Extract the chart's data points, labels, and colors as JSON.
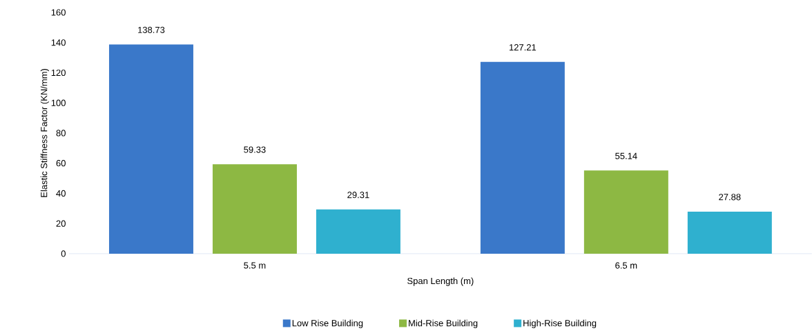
{
  "chart_data": {
    "type": "bar",
    "xlabel": "Span Length (m)",
    "ylabel": "Elastic Stiffness Factor (KN/mm)",
    "categories": [
      "5.5 m",
      "6.5 m"
    ],
    "series": [
      {
        "name": "Low Rise Building",
        "color": "#3a78c9",
        "values": [
          138.73,
          127.21
        ]
      },
      {
        "name": "Mid-Rise Building",
        "color": "#8db843",
        "values": [
          59.33,
          55.14
        ]
      },
      {
        "name": "High-Rise Building",
        "color": "#2fb0cf",
        "values": [
          29.31,
          27.88
        ]
      }
    ],
    "ylim": [
      0,
      160
    ],
    "yticks": [
      0,
      20,
      40,
      60,
      80,
      100,
      120,
      140,
      160
    ],
    "grid": false,
    "legend": "bottom",
    "data_labels": true
  }
}
